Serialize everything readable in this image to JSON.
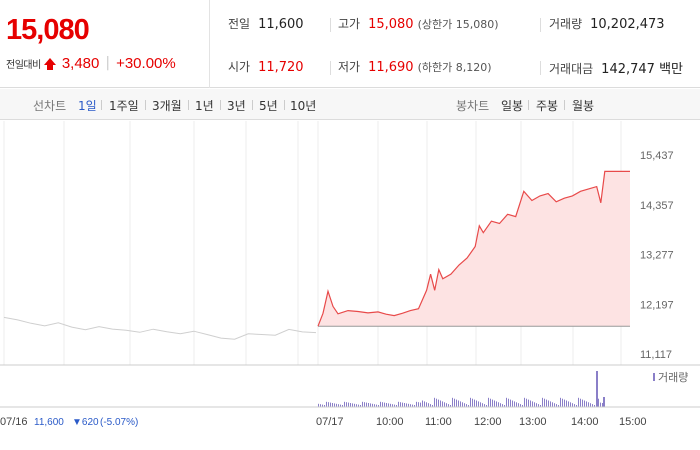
{
  "summary": {
    "price": "15,080",
    "change_label": "전일대비",
    "change_icon": "up-arrow-icon",
    "change_amount": "3,480",
    "change_percent": "+30.00%",
    "prev_close_label": "전일",
    "prev_close": "11,600",
    "high_label": "고가",
    "high": "15,080",
    "upper_limit": "(상한가 15,080)",
    "volume_label": "거래량",
    "volume": "10,202,473",
    "open_label": "시가",
    "open": "11,720",
    "low_label": "저가",
    "low": "11,690",
    "lower_limit": "(하한가 8,120)",
    "amount_label": "거래대금",
    "amount": "142,747 백만",
    "up_color": "#e60000"
  },
  "tabs": {
    "line_title": "선차트",
    "line_periods": [
      "1일",
      "1주일",
      "3개월",
      "1년",
      "3년",
      "5년",
      "10년"
    ],
    "active_period": "1일",
    "candle_title": "봉차트",
    "candle_periods": [
      "일봉",
      "주봉",
      "월봉"
    ]
  },
  "chart_data": {
    "type": "line",
    "y_ticks": [
      "15,437",
      "14,357",
      "13,277",
      "12,197",
      "11,117"
    ],
    "ylim": [
      11117,
      15437
    ],
    "x_ticks": [
      "07/16",
      "07/17",
      "10:00",
      "11:00",
      "12:00",
      "13:00",
      "14:00",
      "15:00"
    ],
    "prev_day": {
      "date": "07/16",
      "close": "11,600",
      "change": "▼620",
      "change_pct": "(-5.07%)"
    },
    "volume_legend": "거래량",
    "series": [
      {
        "session": "07/16",
        "values": [
          11860,
          11840,
          11800,
          11780,
          11760,
          11700,
          11680,
          11660,
          11640,
          11650,
          11640,
          11620,
          11600,
          11590,
          11560,
          11520,
          11480,
          11490,
          11520,
          11540,
          11560,
          11600,
          11580,
          11600
        ]
      },
      {
        "session": "07/17",
        "times": [
          "09:00",
          "09:05",
          "09:10",
          "09:15",
          "09:20",
          "09:30",
          "09:40",
          "09:50",
          "10:00",
          "10:10",
          "10:20",
          "10:30",
          "10:40",
          "10:50",
          "11:00",
          "11:05",
          "11:10",
          "11:15",
          "11:20",
          "11:30",
          "11:40",
          "11:50",
          "12:00",
          "12:05",
          "12:10",
          "12:20",
          "12:30",
          "12:40",
          "12:50",
          "13:00",
          "13:10",
          "13:20",
          "13:30",
          "13:40",
          "13:50",
          "14:00",
          "14:10",
          "14:20",
          "14:30",
          "14:35",
          "14:40",
          "14:50",
          "15:00",
          "15:20"
        ],
        "values": [
          11720,
          12000,
          12480,
          12150,
          11990,
          12060,
          12040,
          12010,
          12030,
          11980,
          11950,
          12000,
          12060,
          12100,
          12500,
          12850,
          12500,
          12950,
          12750,
          12850,
          13050,
          13200,
          13450,
          13900,
          13750,
          14000,
          13950,
          14150,
          14100,
          14650,
          14450,
          14550,
          14600,
          14420,
          14500,
          14550,
          14650,
          14700,
          14750,
          14400,
          15080,
          15080,
          15080,
          15080
        ]
      }
    ],
    "line_color": "#e84a4a",
    "area_color": "#fde3e3",
    "prev_line_color": "#cfcfcf",
    "volume_color": "#8a7fc8"
  }
}
